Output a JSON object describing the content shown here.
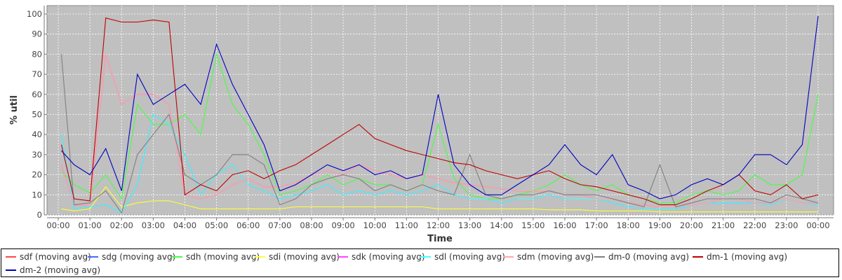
{
  "chart_data": {
    "type": "line",
    "title": "",
    "xlabel": "Time",
    "ylabel": "% util",
    "ylim": [
      0,
      100
    ],
    "yticks": [
      "0",
      "10",
      "20",
      "30",
      "40",
      "50",
      "60",
      "70",
      "80",
      "90",
      "100"
    ],
    "xticks": [
      "00:00",
      "01:00",
      "02:00",
      "03:00",
      "04:00",
      "05:00",
      "06:00",
      "07:00",
      "08:00",
      "09:00",
      "10:00",
      "11:00",
      "12:00",
      "13:00",
      "14:00",
      "15:00",
      "16:00",
      "17:00",
      "18:00",
      "19:00",
      "20:00",
      "21:00",
      "22:00",
      "23:00",
      "00:00"
    ],
    "x_hours": [
      0.1,
      0.5,
      1,
      1.5,
      2,
      2.5,
      3,
      3.5,
      4,
      4.5,
      5,
      5.5,
      6,
      6.5,
      7,
      7.5,
      8,
      8.5,
      9,
      9.5,
      10,
      10.5,
      11,
      11.5,
      12,
      12.5,
      13,
      13.5,
      14,
      14.5,
      15,
      15.5,
      16,
      16.5,
      17,
      17.5,
      18,
      18.5,
      19,
      19.5,
      20,
      20.5,
      21,
      21.5,
      22,
      22.5,
      23,
      23.5,
      24
    ],
    "grid": true,
    "legend_position": "bottom",
    "series": [
      {
        "name": "sdf (moving avg)",
        "color": "#ff4848",
        "values": [
          25,
          5,
          5,
          80,
          55,
          60,
          60,
          55,
          10,
          8,
          10,
          15,
          18,
          14,
          14,
          16,
          20,
          22,
          20,
          25,
          22,
          20,
          18,
          20,
          18,
          16,
          15,
          14,
          13,
          12,
          12,
          12,
          10,
          10,
          8,
          8,
          6,
          5,
          4,
          4,
          5,
          6,
          8,
          8,
          6,
          6,
          8,
          6,
          6
        ]
      },
      {
        "name": "sdg (moving avg)",
        "color": "#4a66ff",
        "values": [
          40,
          3,
          4,
          5,
          1,
          15,
          50,
          45,
          30,
          10,
          20,
          25,
          15,
          12,
          8,
          10,
          12,
          15,
          10,
          12,
          10,
          12,
          10,
          12,
          15,
          10,
          8,
          8,
          6,
          8,
          8,
          10,
          8,
          8,
          8,
          6,
          4,
          3,
          3,
          3,
          5,
          6,
          6,
          6,
          6,
          5,
          8,
          6,
          5
        ]
      },
      {
        "name": "sdh (moving avg)",
        "color": "#44ff44",
        "values": [
          22,
          15,
          11,
          20,
          8,
          55,
          45,
          45,
          50,
          40,
          80,
          55,
          45,
          30,
          10,
          12,
          15,
          20,
          15,
          18,
          15,
          15,
          12,
          15,
          45,
          18,
          10,
          8,
          8,
          10,
          12,
          15,
          20,
          15,
          12,
          15,
          10,
          8,
          6,
          6,
          10,
          12,
          10,
          12,
          20,
          15,
          15,
          20,
          60
        ]
      },
      {
        "name": "sdi (moving avg)",
        "color": "#ffff33",
        "values": [
          3,
          2,
          3,
          14,
          4,
          6,
          7,
          7,
          5,
          3,
          3,
          3,
          3,
          3,
          3,
          4,
          4,
          4,
          4,
          4,
          4,
          4,
          4,
          4,
          3,
          3,
          3,
          3,
          3,
          3,
          3,
          2.5,
          2.5,
          2.5,
          2,
          2,
          2,
          2,
          1.5,
          1.5,
          1.5,
          1.5,
          1.5,
          1.5,
          1.5,
          1.5,
          1.5,
          1.5,
          1.5
        ]
      },
      {
        "name": "sdk (moving avg)",
        "color": "#ff44ff",
        "values": [
          25,
          5,
          5,
          80,
          55,
          60,
          60,
          55,
          10,
          8,
          10,
          15,
          18,
          14,
          14,
          16,
          20,
          22,
          20,
          25,
          22,
          20,
          18,
          20,
          18,
          16,
          15,
          14,
          13,
          12,
          12,
          12,
          10,
          10,
          8,
          8,
          6,
          5,
          4,
          4,
          5,
          6,
          8,
          8,
          6,
          6,
          8,
          6,
          6
        ]
      },
      {
        "name": "sdl (moving avg)",
        "color": "#44ffff",
        "values": [
          40,
          3,
          4,
          5,
          1,
          15,
          50,
          45,
          30,
          10,
          20,
          25,
          15,
          12,
          8,
          10,
          12,
          15,
          10,
          12,
          10,
          12,
          10,
          12,
          15,
          10,
          8,
          8,
          6,
          8,
          8,
          10,
          8,
          8,
          8,
          6,
          4,
          3,
          3,
          3,
          5,
          6,
          6,
          6,
          6,
          5,
          8,
          6,
          5
        ]
      },
      {
        "name": "sdm (moving avg)",
        "color": "#ffa8a8",
        "values": [
          25,
          5,
          5,
          80,
          55,
          60,
          60,
          55,
          10,
          8,
          10,
          15,
          18,
          14,
          14,
          16,
          20,
          22,
          20,
          25,
          22,
          20,
          18,
          20,
          18,
          16,
          15,
          14,
          13,
          12,
          12,
          12,
          10,
          10,
          8,
          8,
          6,
          5,
          4,
          4,
          5,
          6,
          8,
          8,
          6,
          6,
          8,
          6,
          6
        ]
      },
      {
        "name": "dm-0 (moving avg)",
        "color": "#808080",
        "values": [
          80,
          5,
          6,
          12,
          1,
          30,
          40,
          50,
          20,
          15,
          20,
          30,
          30,
          25,
          5,
          8,
          15,
          18,
          20,
          18,
          12,
          15,
          12,
          15,
          12,
          10,
          30,
          10,
          8,
          10,
          10,
          12,
          10,
          10,
          10,
          8,
          6,
          4,
          25,
          4,
          6,
          8,
          8,
          8,
          8,
          6,
          10,
          8,
          6
        ]
      },
      {
        "name": "dm-1 (moving avg)",
        "color": "#c00000",
        "values": [
          35,
          8,
          7,
          98,
          96,
          96,
          97,
          96,
          10,
          15,
          12,
          20,
          22,
          18,
          22,
          25,
          30,
          35,
          40,
          45,
          38,
          35,
          32,
          30,
          28,
          26,
          25,
          22,
          20,
          18,
          20,
          22,
          18,
          15,
          14,
          12,
          10,
          8,
          5,
          5,
          8,
          12,
          15,
          20,
          12,
          10,
          15,
          8,
          10
        ]
      },
      {
        "name": "dm-2 (moving avg)",
        "color": "#0000c0",
        "values": [
          32,
          25,
          20,
          33,
          12,
          70,
          55,
          60,
          65,
          55,
          85,
          65,
          50,
          35,
          12,
          15,
          20,
          25,
          22,
          25,
          20,
          22,
          18,
          20,
          60,
          25,
          15,
          10,
          10,
          15,
          20,
          25,
          35,
          25,
          20,
          30,
          15,
          12,
          8,
          10,
          15,
          18,
          15,
          20,
          30,
          30,
          25,
          35,
          99
        ]
      }
    ]
  }
}
